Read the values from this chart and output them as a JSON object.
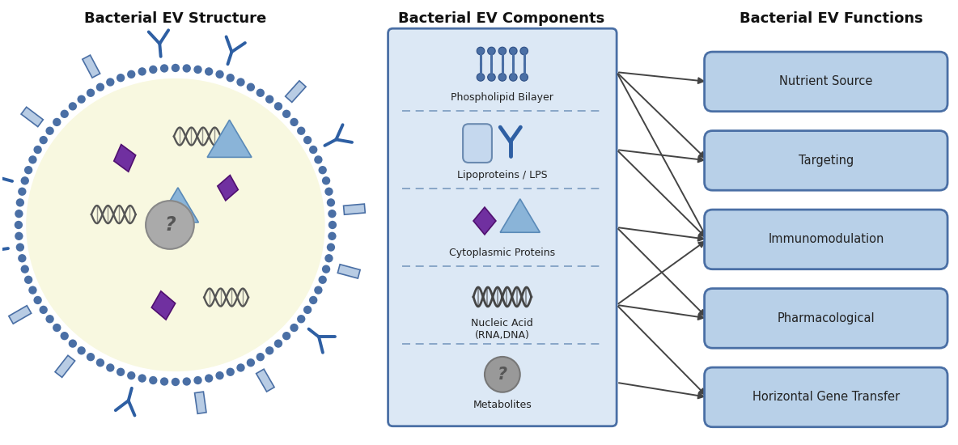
{
  "title_left": "Bacterial EV Structure",
  "title_center": "Bacterial EV Components",
  "title_right": "Bacterial EV Functions",
  "components": [
    "Phospholipid Bilayer",
    "Lipoproteins / LPS",
    "Cytoplasmic Proteins",
    "Nucleic Acid\n(RNA,DNA)",
    "Metabolites"
  ],
  "functions": [
    "Nutrient Source",
    "Targeting",
    "Immunomodulation",
    "Pharmacological",
    "Horizontal Gene Transfer"
  ],
  "arrows": [
    [
      0,
      0
    ],
    [
      0,
      1
    ],
    [
      0,
      2
    ],
    [
      1,
      1
    ],
    [
      1,
      2
    ],
    [
      2,
      2
    ],
    [
      2,
      3
    ],
    [
      3,
      2
    ],
    [
      3,
      3
    ],
    [
      3,
      4
    ],
    [
      4,
      4
    ]
  ],
  "bg_color": "#ffffff",
  "component_box_color": "#dce8f5",
  "component_box_edge": "#4a6fa5",
  "function_box_color": "#b8d0e8",
  "function_box_edge": "#4a6fa5",
  "arrow_color": "#444444",
  "title_color": "#111111",
  "ev_inner_color": "#f8f8e0",
  "ev_dot_color": "#4a6fa5",
  "diamond_color": "#7030a0",
  "triangle_color": "#8ab4d8",
  "triangle_edge": "#5a8ab8",
  "text_color": "#222222",
  "protein_rect_color": "#b8cce4",
  "y_shape_color": "#2e5fa3",
  "dna_color": "#555555",
  "phospholipid_color": "#4a6fa5",
  "lipoprotein_color": "#c5d8ee"
}
